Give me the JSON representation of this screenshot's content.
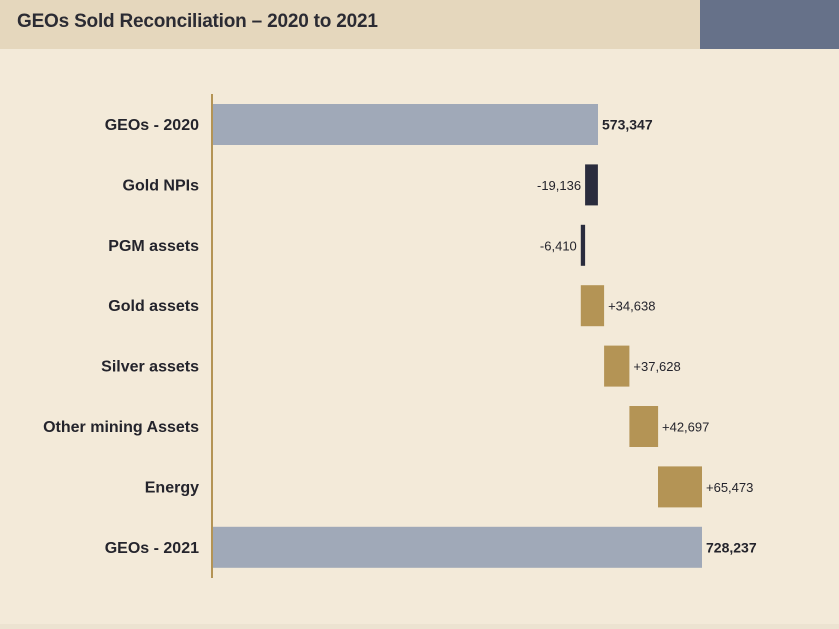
{
  "header": {
    "title": "GEOs Sold Reconciliation – 2020 to 2021"
  },
  "colors": {
    "total": "#a0a9b8",
    "decrease": "#2a2c3d",
    "increase": "#b49455",
    "axis": "#b49455"
  },
  "chart_data": {
    "type": "bar",
    "subtype": "waterfall",
    "orientation": "horizontal",
    "title": "GEOs Sold Reconciliation – 2020 to 2021",
    "categories": [
      "GEOs - 2020",
      "Gold NPIs",
      "PGM assets",
      "Gold assets",
      "Silver assets",
      "Other mining Assets",
      "Energy",
      "GEOs - 2021"
    ],
    "values": [
      573347,
      -19136,
      -6410,
      34638,
      37628,
      42697,
      65473,
      728237
    ],
    "labels": [
      "573,347",
      "-19,136",
      "-6,410",
      "+34,638",
      "+37,628",
      "+42,697",
      "+65,473",
      "728,237"
    ],
    "kinds": [
      "total",
      "delta",
      "delta",
      "delta",
      "delta",
      "delta",
      "delta",
      "total"
    ],
    "xlim": [
      0,
      728237
    ],
    "grid": false,
    "legend": "none"
  }
}
